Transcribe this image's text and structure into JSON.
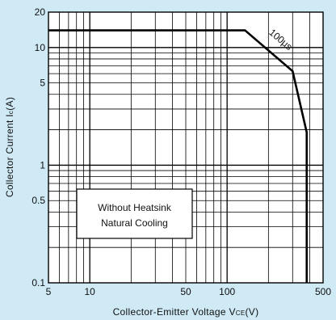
{
  "chart_data": {
    "type": "line",
    "title": "",
    "xlabel": {
      "main": "Collector-Emitter Voltage V",
      "sub": "CE",
      "unit": "(V)"
    },
    "ylabel": {
      "main": "Collector Current I",
      "sub": "c",
      "unit": "(A)"
    },
    "x_scale": "log",
    "y_scale": "log",
    "xlim": [
      5,
      500
    ],
    "ylim": [
      0.1,
      20
    ],
    "grid": true,
    "x_ticks": [
      {
        "value": 5,
        "label": "5"
      },
      {
        "value": 10,
        "label": "10"
      },
      {
        "value": 50,
        "label": "50"
      },
      {
        "value": 100,
        "label": "100"
      },
      {
        "value": 500,
        "label": "500"
      }
    ],
    "y_ticks": [
      {
        "value": 0.1,
        "label": "0.1"
      },
      {
        "value": 0.5,
        "label": "0.5"
      },
      {
        "value": 1,
        "label": "1"
      },
      {
        "value": 5,
        "label": "5"
      },
      {
        "value": 10,
        "label": "10"
      },
      {
        "value": 20,
        "label": "20"
      }
    ],
    "series": [
      {
        "name": "100μs",
        "color": "#000000",
        "x": [
          5,
          135,
          300,
          380,
          380
        ],
        "y": [
          14,
          14,
          6.3,
          1.9,
          0.1
        ]
      }
    ],
    "annotations": [
      {
        "text": "100μs"
      }
    ],
    "note_box": {
      "lines": [
        "Without Heatsink",
        "Natural Cooling"
      ]
    },
    "colors": {
      "background": "#cfe9f5",
      "plot_area": "#ffffff",
      "grid": "#000000",
      "line": "#000000"
    }
  }
}
